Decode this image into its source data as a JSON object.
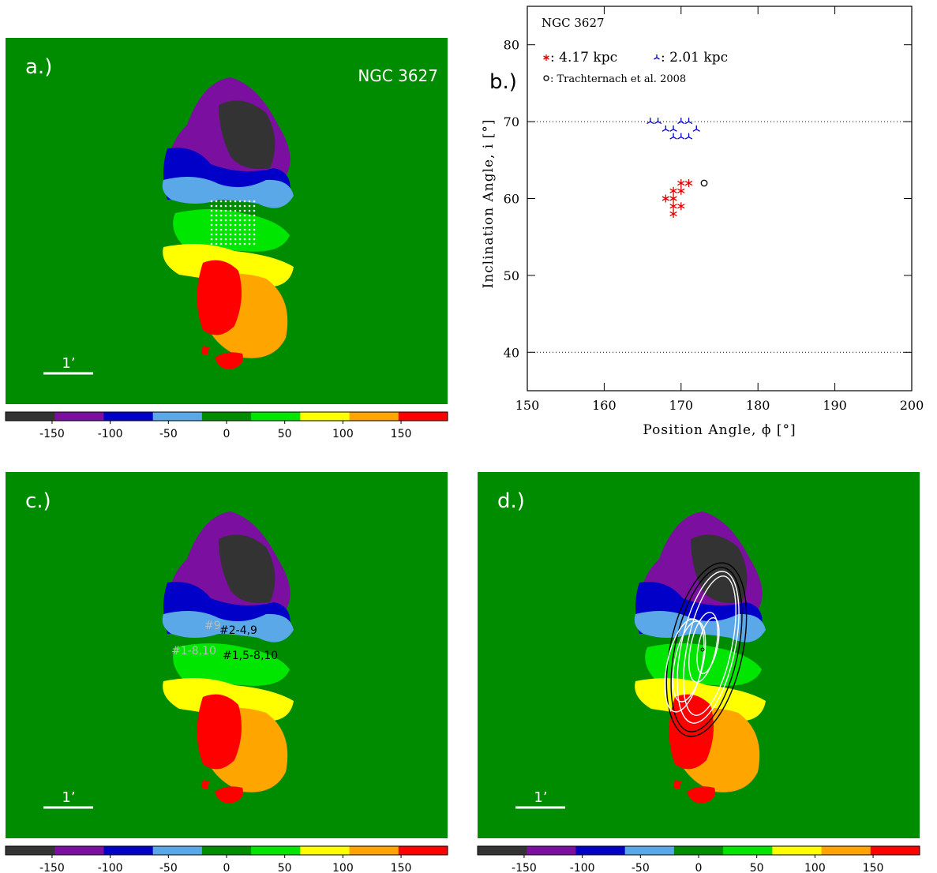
{
  "chart_data": [
    {
      "type": "map",
      "panel_label": "a.)",
      "title": "NGC 3627",
      "scale_label": "1’",
      "colors": [
        "#333333",
        "#7b0fa0",
        "#0000c8",
        "#5aa8e8",
        "#008c00",
        "#00e600",
        "#ffff00",
        "#ffa500",
        "#ff0000"
      ],
      "clim": [
        -190,
        190
      ],
      "cticks": [
        -150,
        -100,
        -50,
        0,
        50,
        100,
        150
      ],
      "annotations": [],
      "grid_dots": true,
      "contours": false
    },
    {
      "type": "scatter",
      "panel_label": "b.)",
      "title": "NGC 3627",
      "xlabel": "Position Angle, ϕ [°]",
      "ylabel": "Inclination Angle, i [°]",
      "xlim": [
        150,
        200
      ],
      "ylim": [
        35,
        85
      ],
      "xticks": [
        150,
        160,
        170,
        180,
        190,
        200
      ],
      "yticks": [
        40,
        50,
        60,
        70,
        80
      ],
      "hlines": [
        40,
        70
      ],
      "series": [
        {
          "name": ": 4.17 kpc",
          "color": "#e00000",
          "marker": "star",
          "x": [
            170,
            171,
            169,
            170,
            168,
            169,
            169,
            170,
            169
          ],
          "y": [
            62,
            62,
            61,
            61,
            60,
            60,
            59,
            59,
            58
          ]
        },
        {
          "name": ": 2.01 kpc",
          "color": "#0000d0",
          "marker": "tri",
          "x": [
            166,
            167,
            170,
            171,
            168,
            169,
            172,
            169,
            170,
            171
          ],
          "y": [
            70,
            70,
            70,
            70,
            69,
            69,
            69,
            68,
            68,
            68
          ]
        },
        {
          "name": ": Trachternach et al. 2008",
          "color": "#000000",
          "marker": "circle",
          "x": [
            173
          ],
          "y": [
            62
          ]
        }
      ]
    },
    {
      "type": "map",
      "panel_label": "c.)",
      "scale_label": "1’",
      "colors": [
        "#333333",
        "#7b0fa0",
        "#0000c8",
        "#5aa8e8",
        "#008c00",
        "#00e600",
        "#ffff00",
        "#ffa500",
        "#ff0000"
      ],
      "clim": [
        -190,
        190
      ],
      "cticks": [
        -150,
        -100,
        -50,
        0,
        50,
        100,
        150
      ],
      "annotations": [
        {
          "text": "#9",
          "color": "#bbbbbb"
        },
        {
          "text": "#2-4,9",
          "color": "#000000"
        },
        {
          "text": "#1-8,10",
          "color": "#bbbbbb"
        },
        {
          "text": "#1,5-8,10",
          "color": "#000000"
        }
      ],
      "grid_dots": false,
      "contours": false
    },
    {
      "type": "map",
      "panel_label": "d.)",
      "scale_label": "1’",
      "colors": [
        "#333333",
        "#7b0fa0",
        "#0000c8",
        "#5aa8e8",
        "#008c00",
        "#00e600",
        "#ffff00",
        "#ffa500",
        "#ff0000"
      ],
      "clim": [
        -190,
        190
      ],
      "cticks": [
        -150,
        -100,
        -50,
        0,
        50,
        100,
        150
      ],
      "annotations": [],
      "grid_dots": false,
      "contours": true
    }
  ]
}
